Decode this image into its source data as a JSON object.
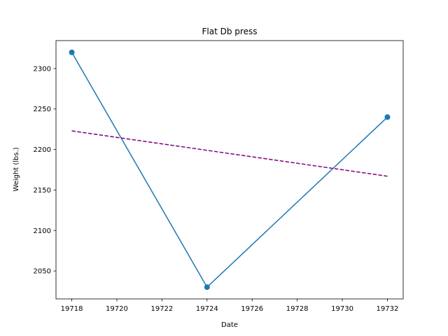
{
  "chart_data": {
    "type": "line",
    "title": "Flat Db press",
    "xlabel": "Date",
    "ylabel": "Weight (lbs.)",
    "xlim": [
      19717.3,
      19732.7
    ],
    "ylim": [
      2015.5,
      2334.5
    ],
    "xticks": [
      19718,
      19720,
      19722,
      19724,
      19726,
      19728,
      19730,
      19732
    ],
    "yticks": [
      2050,
      2100,
      2150,
      2200,
      2250,
      2300
    ],
    "grid": false,
    "series": [
      {
        "style": "solid-with-markers",
        "color": "#1f77b4",
        "x": [
          19718,
          19724,
          19732
        ],
        "y": [
          2320,
          2030,
          2240
        ]
      },
      {
        "style": "dashed",
        "color": "#800080",
        "x": [
          19718,
          19732
        ],
        "y": [
          2223,
          2167
        ]
      }
    ]
  }
}
